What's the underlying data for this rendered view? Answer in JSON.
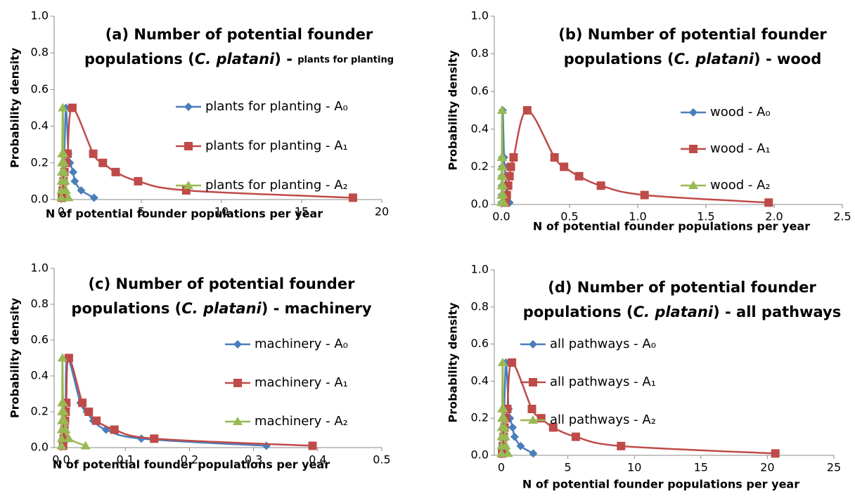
{
  "chart_data": [
    {
      "type": "line",
      "title": {
        "line1": "(a) Number of potential founder",
        "line2": [
          "populations (",
          "C. platani",
          ") - ",
          "plants for planting"
        ]
      },
      "ylabel": "Probability density",
      "xlabel": "N of potential founder populations per year",
      "xlim": [
        0,
        20
      ],
      "xticks": [
        0,
        5,
        10,
        15,
        20
      ],
      "ylim": [
        0,
        1
      ],
      "yticks": [
        {
          "value": 0,
          "label": "0.0"
        },
        0.2,
        0.4,
        0.6,
        0.8,
        {
          "value": 1,
          "label": "1.0"
        }
      ],
      "series": [
        {
          "name": "plants for planting - A₀",
          "color": "#4a7ebb",
          "marker": "diamond",
          "x": [
            0.03,
            0.06,
            0.09,
            0.12,
            0.15,
            0.2,
            0.3,
            0.45,
            0.55,
            0.75,
            0.85,
            1.25,
            2.05
          ],
          "values": [
            0.01,
            0.05,
            0.1,
            0.15,
            0.2,
            0.25,
            0.5,
            0.25,
            0.2,
            0.15,
            0.1,
            0.05,
            0.01
          ]
        },
        {
          "name": "plants for planting - A₁",
          "color": "#be4b48",
          "marker": "square",
          "x": [
            0.05,
            0.1,
            0.15,
            0.2,
            0.3,
            0.4,
            0.7,
            2.0,
            2.6,
            3.4,
            4.8,
            7.8,
            18.2
          ],
          "values": [
            0.01,
            0.05,
            0.1,
            0.15,
            0.2,
            0.25,
            0.5,
            0.25,
            0.2,
            0.15,
            0.1,
            0.05,
            0.01
          ]
        },
        {
          "name": "plants for planting - A₂",
          "color": "#98b954",
          "marker": "triangle",
          "x": [
            0.01,
            0.02,
            0.03,
            0.04,
            0.05,
            0.06,
            0.1,
            0.15,
            0.18,
            0.2,
            0.25,
            0.3,
            0.45
          ],
          "values": [
            0.01,
            0.05,
            0.1,
            0.15,
            0.2,
            0.25,
            0.5,
            0.25,
            0.2,
            0.15,
            0.1,
            0.05,
            0.01
          ]
        }
      ]
    },
    {
      "type": "line",
      "title": {
        "line1": "(b) Number of potential founder",
        "line2": [
          "populations (",
          "C. platani",
          ") - ",
          "wood"
        ]
      },
      "ylabel": "Probability density",
      "xlabel": "N of potential founder populations per year",
      "xlim": [
        0,
        2.5
      ],
      "xticks": [
        {
          "value": 0,
          "label": "0.0"
        },
        0.5,
        {
          "value": 1,
          "label": "1.0"
        },
        1.5,
        {
          "value": 2,
          "label": "2.0"
        },
        2.5
      ],
      "ylim": [
        0,
        1
      ],
      "yticks": [
        {
          "value": 0,
          "label": "0.0"
        },
        0.2,
        0.4,
        0.6,
        0.8,
        {
          "value": 1,
          "label": "1.0"
        }
      ],
      "series": [
        {
          "name": "wood - A₀",
          "color": "#4a7ebb",
          "marker": "diamond",
          "x": [
            0.002,
            0.003,
            0.004,
            0.005,
            0.006,
            0.007,
            0.01,
            0.02,
            0.025,
            0.03,
            0.035,
            0.04,
            0.06
          ],
          "values": [
            0.01,
            0.05,
            0.1,
            0.15,
            0.2,
            0.25,
            0.5,
            0.25,
            0.2,
            0.15,
            0.1,
            0.05,
            0.01
          ]
        },
        {
          "name": "wood - A₁",
          "color": "#be4b48",
          "marker": "square",
          "x": [
            0.03,
            0.04,
            0.05,
            0.06,
            0.07,
            0.09,
            0.19,
            0.39,
            0.46,
            0.57,
            0.73,
            1.05,
            1.96
          ],
          "values": [
            0.01,
            0.05,
            0.1,
            0.15,
            0.2,
            0.25,
            0.5,
            0.25,
            0.2,
            0.15,
            0.1,
            0.05,
            0.01
          ]
        },
        {
          "name": "wood - A₂",
          "color": "#98b954",
          "marker": "triangle",
          "x": [
            0.001,
            0.0015,
            0.002,
            0.0025,
            0.003,
            0.0035,
            0.005,
            0.008,
            0.009,
            0.01,
            0.012,
            0.014,
            0.02
          ],
          "values": [
            0.01,
            0.05,
            0.1,
            0.15,
            0.2,
            0.25,
            0.5,
            0.25,
            0.2,
            0.15,
            0.1,
            0.05,
            0.01
          ]
        }
      ]
    },
    {
      "type": "line",
      "title": {
        "line1": "(c) Number of potential founder",
        "line2": [
          "populations (",
          "C. platani",
          ") - ",
          "machinery"
        ]
      },
      "ylabel": "Probability density",
      "xlabel": "N of potential founder populations per year",
      "xlim": [
        0,
        0.5
      ],
      "xticks": [
        {
          "value": 0,
          "label": "0.0"
        },
        0.1,
        0.2,
        0.3,
        0.4,
        0.5
      ],
      "ylim": [
        0,
        1
      ],
      "yticks": [
        {
          "value": 0,
          "label": "0.0"
        },
        0.2,
        0.4,
        0.6,
        0.8,
        {
          "value": 1,
          "label": "1.0"
        }
      ],
      "series": [
        {
          "name": "machinery - A₀",
          "color": "#4a7ebb",
          "marker": "diamond",
          "x": [
            0.002,
            0.003,
            0.004,
            0.005,
            0.006,
            0.007,
            0.01,
            0.03,
            0.04,
            0.05,
            0.07,
            0.125,
            0.32
          ],
          "values": [
            0.01,
            0.05,
            0.1,
            0.15,
            0.2,
            0.25,
            0.5,
            0.25,
            0.2,
            0.15,
            0.1,
            0.05,
            0.01
          ]
        },
        {
          "name": "machinery - A₁",
          "color": "#be4b48",
          "marker": "square",
          "x": [
            0.003,
            0.004,
            0.005,
            0.006,
            0.007,
            0.008,
            0.012,
            0.033,
            0.043,
            0.055,
            0.083,
            0.145,
            0.392
          ],
          "values": [
            0.01,
            0.05,
            0.1,
            0.15,
            0.2,
            0.25,
            0.5,
            0.25,
            0.2,
            0.15,
            0.1,
            0.05,
            0.01
          ]
        },
        {
          "name": "machinery - A₂",
          "color": "#98b954",
          "marker": "triangle",
          "x": [
            0.0005,
            0.0007,
            0.0009,
            0.0011,
            0.0013,
            0.0015,
            0.002,
            0.003,
            0.004,
            0.005,
            0.007,
            0.012,
            0.038
          ],
          "values": [
            0.01,
            0.05,
            0.1,
            0.15,
            0.2,
            0.25,
            0.5,
            0.25,
            0.2,
            0.15,
            0.1,
            0.05,
            0.01
          ]
        }
      ]
    },
    {
      "type": "line",
      "title": {
        "line1": "(d) Number of potential founder",
        "line2": [
          "populations (",
          "C. platani",
          ") - ",
          "all pathways"
        ]
      },
      "ylabel": "Probability density",
      "xlabel": "N of potential founder populations per year",
      "xlim": [
        0,
        25
      ],
      "xticks": [
        0,
        5,
        10,
        15,
        20,
        25
      ],
      "ylim": [
        0,
        1
      ],
      "yticks": [
        {
          "value": 0,
          "label": "0.0"
        },
        0.2,
        0.4,
        0.6,
        0.8,
        {
          "value": 1,
          "label": "1.0"
        }
      ],
      "series": [
        {
          "name": "all pathways - A₀",
          "color": "#4a7ebb",
          "marker": "diamond",
          "x": [
            0.04,
            0.07,
            0.1,
            0.13,
            0.16,
            0.22,
            0.35,
            0.55,
            0.65,
            0.85,
            1.0,
            1.45,
            2.4
          ],
          "values": [
            0.01,
            0.05,
            0.1,
            0.15,
            0.2,
            0.25,
            0.5,
            0.25,
            0.2,
            0.15,
            0.1,
            0.05,
            0.01
          ]
        },
        {
          "name": "all pathways - A₁",
          "color": "#be4b48",
          "marker": "square",
          "x": [
            0.06,
            0.12,
            0.18,
            0.24,
            0.33,
            0.45,
            0.8,
            2.3,
            3.0,
            3.9,
            5.6,
            9.0,
            20.6
          ],
          "values": [
            0.01,
            0.05,
            0.1,
            0.15,
            0.2,
            0.25,
            0.5,
            0.25,
            0.2,
            0.15,
            0.1,
            0.05,
            0.01
          ]
        },
        {
          "name": "all pathways - A₂",
          "color": "#98b954",
          "marker": "triangle",
          "x": [
            0.01,
            0.02,
            0.03,
            0.04,
            0.05,
            0.06,
            0.1,
            0.15,
            0.2,
            0.25,
            0.3,
            0.35,
            0.5
          ],
          "values": [
            0.01,
            0.05,
            0.1,
            0.15,
            0.2,
            0.25,
            0.5,
            0.25,
            0.2,
            0.15,
            0.1,
            0.05,
            0.01
          ]
        }
      ]
    }
  ]
}
